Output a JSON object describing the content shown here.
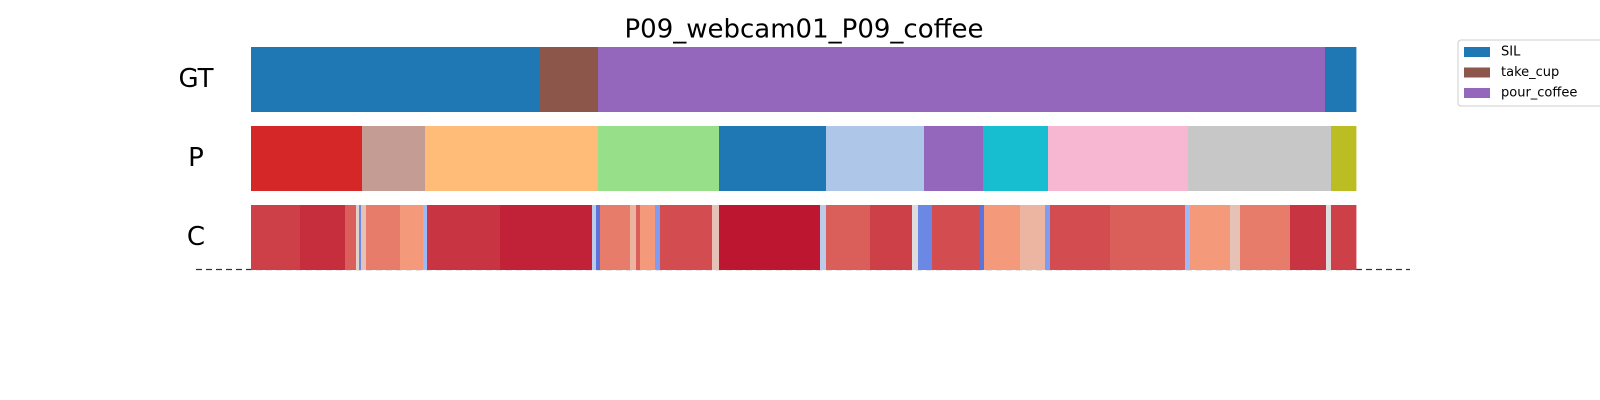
{
  "chart_data": {
    "type": "segmentation",
    "title": "P09_webcam01_P09_coffee",
    "xlim": [
      0,
      1105
    ],
    "legend": {
      "loc": "upper right",
      "entries": [
        {
          "name": "SIL",
          "color": "#1f77b4"
        },
        {
          "name": "take_cup",
          "color": "#8c564b"
        },
        {
          "name": "pour_coffee",
          "color": "#9467bd"
        }
      ]
    },
    "rows": [
      {
        "label": "GT",
        "kind": "segments",
        "edges": [
          0,
          289,
          347,
          1074,
          1105
        ],
        "colors": [
          "#1f77b4",
          "#8c564b",
          "#9467bd",
          "#1f77b4"
        ]
      },
      {
        "label": "P",
        "kind": "segments",
        "edges": [
          0,
          111,
          174,
          347,
          468,
          575,
          673,
          732,
          797,
          937,
          1080,
          1105
        ],
        "colors": [
          "#d62728",
          "#c49c94",
          "#ffbb78",
          "#98df8a",
          "#1f77b4",
          "#aec7e8",
          "#9467bd",
          "#17becf",
          "#f7b6d2",
          "#c7c7c7",
          "#bcbd22"
        ]
      },
      {
        "label": "C",
        "kind": "heatmap",
        "colormap": "coolwarm",
        "clim": [
          0,
          1
        ],
        "edges": [
          0,
          49,
          94,
          105,
          108,
          110,
          115,
          149,
          172,
          176,
          249,
          341,
          345,
          349,
          379,
          385,
          389,
          404,
          409,
          461,
          468,
          569,
          575,
          619,
          661,
          667,
          681,
          729,
          733,
          769,
          794,
          799,
          859,
          934,
          939,
          979,
          989,
          1039,
          1075,
          1080,
          1105
        ],
        "values": [
          0.9,
          0.93,
          0.85,
          0.55,
          0.15,
          0.6,
          0.8,
          0.75,
          0.3,
          0.92,
          0.95,
          0.4,
          0.1,
          0.8,
          0.65,
          0.85,
          0.75,
          0.2,
          0.88,
          0.6,
          0.97,
          0.4,
          0.85,
          0.9,
          0.5,
          0.15,
          0.88,
          0.1,
          0.75,
          0.65,
          0.2,
          0.88,
          0.85,
          0.3,
          0.75,
          0.6,
          0.8,
          0.92,
          0.5,
          0.9
        ]
      }
    ]
  }
}
